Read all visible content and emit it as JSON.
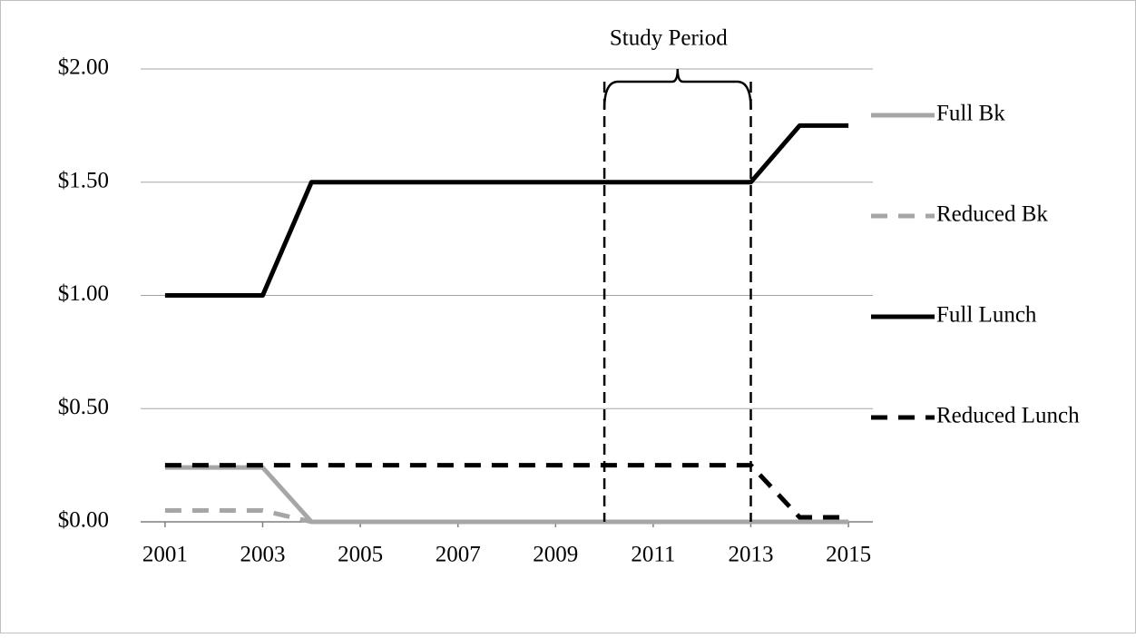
{
  "chart_data": {
    "type": "line",
    "x": [
      2001,
      2002,
      2003,
      2004,
      2005,
      2006,
      2007,
      2008,
      2009,
      2010,
      2011,
      2012,
      2013,
      2014,
      2015
    ],
    "xlim": [
      2000.5,
      2015.5
    ],
    "xticks": [
      2001,
      2003,
      2005,
      2007,
      2009,
      2011,
      2013,
      2015
    ],
    "ylim": [
      0,
      2
    ],
    "yticks": [
      {
        "value": 0,
        "label": "$0.00"
      },
      {
        "value": 0.5,
        "label": "$0.50"
      },
      {
        "value": 1,
        "label": "$1.00"
      },
      {
        "value": 1.5,
        "label": "$1.50"
      },
      {
        "value": 2,
        "label": "$2.00"
      }
    ],
    "grid": true,
    "legend": "right",
    "series": [
      {
        "name": "Full Bk",
        "color": "#a6a6a6",
        "dashed": false,
        "values": [
          0.24,
          0.24,
          0.24,
          0,
          0,
          0,
          0,
          0,
          0,
          0,
          0,
          0,
          0,
          0,
          0
        ]
      },
      {
        "name": "Reduced Bk",
        "color": "#a6a6a6",
        "dashed": true,
        "values": [
          0.05,
          0.05,
          0.05,
          0,
          0,
          0,
          0,
          0,
          0,
          0,
          0,
          0,
          0,
          0,
          0
        ]
      },
      {
        "name": "Full Lunch",
        "color": "#000000",
        "dashed": false,
        "values": [
          1,
          1,
          1,
          1.5,
          1.5,
          1.5,
          1.5,
          1.5,
          1.5,
          1.5,
          1.5,
          1.5,
          1.5,
          1.75,
          1.75
        ]
      },
      {
        "name": "Reduced Lunch",
        "color": "#000000",
        "dashed": true,
        "values": [
          0.25,
          0.25,
          0.25,
          0.25,
          0.25,
          0.25,
          0.25,
          0.25,
          0.25,
          0.25,
          0.25,
          0.25,
          0.25,
          0.02,
          0.02
        ]
      }
    ],
    "annotation": {
      "label": "Study Period",
      "start": 2010,
      "end": 2013
    }
  }
}
